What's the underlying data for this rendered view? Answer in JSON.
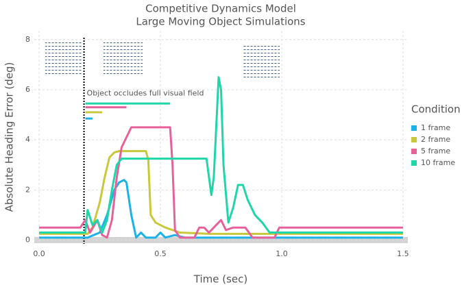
{
  "chart_data": {
    "type": "line",
    "title": "Competitive Dynamics Model",
    "subtitle": "Large Moving Object Simulations",
    "x_label": "Time (sec)",
    "y_label": "Absolute Heading Error (deg)",
    "legend_title": "Condition",
    "annotation": "Object occludes full visual field",
    "occlusion_onset": 0.185,
    "xlim": [
      -0.02,
      1.52
    ],
    "ylim": [
      -0.15,
      8.35
    ],
    "xticks": [
      {
        "value": 0,
        "label": "0.0"
      },
      0.5,
      {
        "value": 1,
        "label": "1.0"
      },
      1.5
    ],
    "yticks": [
      0,
      2,
      4,
      6,
      8
    ],
    "grid": true,
    "series": [
      {
        "name": "1 frame",
        "color": "#1ab3e8",
        "occlusion_end": 0.22,
        "occlusion_y": 4.85,
        "x": [
          0,
          0.2,
          0.25,
          0.28,
          0.31,
          0.33,
          0.35,
          0.36,
          0.38,
          0.4,
          0.42,
          0.44,
          0.48,
          0.5,
          0.52,
          0.56,
          0.6,
          1.5
        ],
        "values": [
          0.1,
          0.1,
          0.3,
          1.0,
          2.0,
          2.3,
          2.4,
          2.3,
          1.0,
          0.1,
          0.3,
          0.1,
          0.1,
          0.3,
          0.1,
          0.2,
          0.1,
          0.1
        ]
      },
      {
        "name": "2 frame",
        "color": "#c9c83a",
        "occlusion_end": 0.26,
        "occlusion_y": 5.1,
        "x": [
          0,
          0.2,
          0.22,
          0.25,
          0.27,
          0.29,
          0.31,
          0.33,
          0.44,
          0.45,
          0.46,
          0.48,
          0.52,
          0.58,
          0.7,
          1.5
        ],
        "values": [
          0.25,
          0.25,
          0.5,
          1.5,
          2.5,
          3.3,
          3.5,
          3.55,
          3.55,
          3.2,
          1.0,
          0.7,
          0.5,
          0.3,
          0.25,
          0.25
        ]
      },
      {
        "name": "5 frame",
        "color": "#e8609a",
        "occlusion_end": 0.36,
        "occlusion_y": 5.3,
        "x": [
          0,
          0.17,
          0.19,
          0.21,
          0.24,
          0.26,
          0.28,
          0.3,
          0.32,
          0.34,
          0.36,
          0.38,
          0.54,
          0.55,
          0.56,
          0.58,
          0.64,
          0.66,
          0.68,
          0.7,
          0.72,
          0.75,
          0.77,
          0.8,
          0.85,
          0.88,
          0.97,
          0.99,
          1.5
        ],
        "values": [
          0.5,
          0.5,
          0.8,
          0.3,
          0.8,
          0.2,
          0.1,
          0.8,
          2.5,
          3.7,
          4.1,
          4.5,
          4.5,
          3.0,
          0.4,
          0.1,
          0.1,
          0.5,
          0.5,
          0.3,
          0.5,
          0.8,
          0.4,
          0.5,
          0.5,
          0.1,
          0.1,
          0.5,
          0.5
        ]
      },
      {
        "name": "10 frame",
        "color": "#1ed6a8",
        "occlusion_end": 0.54,
        "occlusion_y": 5.45,
        "x": [
          0,
          0.19,
          0.2,
          0.22,
          0.24,
          0.26,
          0.28,
          0.3,
          0.32,
          0.34,
          0.69,
          0.71,
          0.72,
          0.73,
          0.74,
          0.75,
          0.76,
          0.78,
          0.8,
          0.82,
          0.84,
          0.86,
          0.89,
          0.92,
          0.95,
          1.0,
          1.5
        ],
        "values": [
          0.3,
          0.3,
          1.2,
          0.6,
          0.8,
          0.3,
          0.8,
          2.0,
          3.0,
          3.25,
          3.25,
          1.8,
          2.5,
          4.5,
          6.5,
          6.0,
          3.0,
          0.7,
          1.3,
          2.2,
          2.2,
          1.6,
          1.0,
          0.7,
          0.3,
          0.3,
          0.3
        ]
      }
    ]
  }
}
